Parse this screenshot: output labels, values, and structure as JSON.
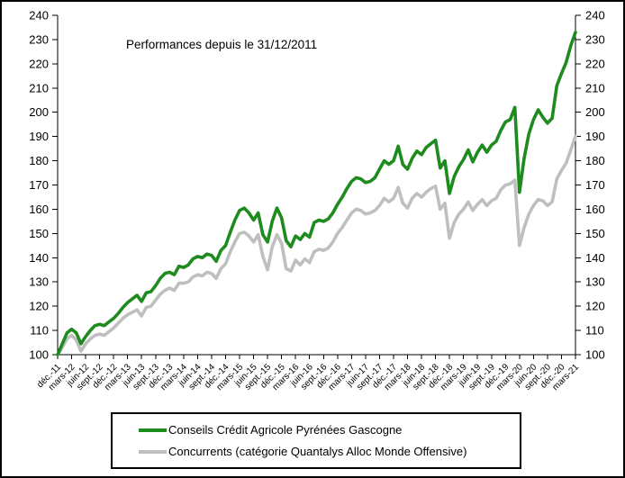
{
  "title": "Performances depuis le 31/12/2011",
  "legend": {
    "items": [
      {
        "label": "Conseils Crédit Agricole Pyrénées Gascogne",
        "color": "#1E8B1E"
      },
      {
        "label": "Concurrents (catégorie Quantalys Alloc Monde Offensive)",
        "color": "#BFBFBF"
      }
    ]
  },
  "chart_data": {
    "type": "line",
    "title": "Performances depuis le 31/12/2011",
    "grid": false,
    "legend_position": "bottom",
    "ylim": [
      100,
      240
    ],
    "y_ticks": [
      100,
      110,
      120,
      130,
      140,
      150,
      160,
      170,
      180,
      190,
      200,
      210,
      220,
      230,
      240
    ],
    "y_axis_sides": [
      "left",
      "right"
    ],
    "points_per_tick": 3,
    "x_tick_labels": [
      "déc.-11",
      "mars-12",
      "juin-12",
      "sept.-12",
      "déc.-12",
      "mars-13",
      "juin-13",
      "sept.-13",
      "déc.-13",
      "mars-14",
      "juin-14",
      "sept.-14",
      "déc.-14",
      "mars-15",
      "juin-15",
      "sept.-15",
      "déc.-15",
      "mars-16",
      "juin-16",
      "sept.-16",
      "déc.-16",
      "mars-17",
      "juin-17",
      "sept.-17",
      "déc.-17",
      "mars-18",
      "juin-18",
      "sept.-18",
      "déc.-18",
      "mars-19",
      "juin-19",
      "sept.-19",
      "déc.-19",
      "mars-20",
      "juin-20",
      "sept.-20",
      "déc.-20",
      "mars-21"
    ],
    "series": [
      {
        "name": "Conseils Crédit Agricole Pyrénées Gascogne",
        "color": "#1E8B1E",
        "line_width": 3.6,
        "values": [
          100,
          104.5,
          109,
          110.5,
          109,
          104.5,
          107.5,
          110,
          112,
          112.5,
          112,
          113.5,
          115,
          117,
          119.5,
          121.5,
          123,
          124.5,
          122,
          125.5,
          126,
          128.5,
          131.5,
          133.5,
          134,
          133,
          136.5,
          136,
          137,
          139.5,
          140.5,
          140,
          141.5,
          141,
          138.5,
          143,
          145,
          150.5,
          155.5,
          159.5,
          160.5,
          158.5,
          155.5,
          158.5,
          149.5,
          146.5,
          155,
          160.5,
          156.5,
          147,
          144.5,
          149,
          147.5,
          150,
          148.5,
          154.5,
          155.5,
          155,
          156,
          158.5,
          162,
          165,
          168.5,
          171.5,
          173,
          172.5,
          171,
          171.5,
          173,
          176.5,
          180,
          178.5,
          180,
          186,
          178.5,
          176.5,
          181,
          184,
          182.5,
          185.5,
          187,
          188.5,
          177,
          180,
          166.5,
          173.5,
          177.5,
          180.5,
          184.5,
          179.5,
          183.5,
          186.5,
          183.5,
          186.5,
          188,
          192.5,
          196,
          197,
          202,
          167,
          181,
          191,
          197,
          201,
          198,
          195.5,
          197.5,
          211,
          216,
          220.5,
          227.5,
          233
        ]
      },
      {
        "name": "Concurrents (catégorie Quantalys Alloc Monde Offensive)",
        "color": "#BFBFBF",
        "line_width": 3.6,
        "values": [
          100,
          103,
          106.5,
          108,
          106,
          101.5,
          104.5,
          106.5,
          108,
          108.5,
          108,
          109.5,
          111,
          113,
          115,
          116.5,
          117.5,
          118.5,
          116,
          119.5,
          120,
          122.5,
          125,
          126.5,
          127.5,
          126.5,
          129.5,
          129.5,
          130,
          132,
          133,
          132.5,
          134,
          133.5,
          131.5,
          135.5,
          137.5,
          142.5,
          146.5,
          150,
          150.5,
          149,
          146.5,
          149.5,
          140.5,
          135,
          144.5,
          149.5,
          146,
          135.5,
          134.5,
          139,
          137,
          139.5,
          138,
          142.5,
          143.5,
          143,
          144,
          146.5,
          150,
          152.5,
          155.5,
          158.5,
          160,
          159.5,
          158,
          158.5,
          159.5,
          161.5,
          164.5,
          163,
          164.5,
          169,
          162.5,
          160.5,
          164.5,
          166.5,
          165,
          167,
          168.5,
          169.5,
          160,
          162.5,
          148,
          154.5,
          158,
          160,
          163,
          159.5,
          162,
          164,
          161.5,
          163.5,
          164.5,
          168,
          170,
          170.5,
          172,
          145,
          152.5,
          158,
          161.5,
          164,
          163.5,
          161.5,
          163,
          172.5,
          176,
          179,
          184.5,
          190
        ]
      }
    ]
  }
}
